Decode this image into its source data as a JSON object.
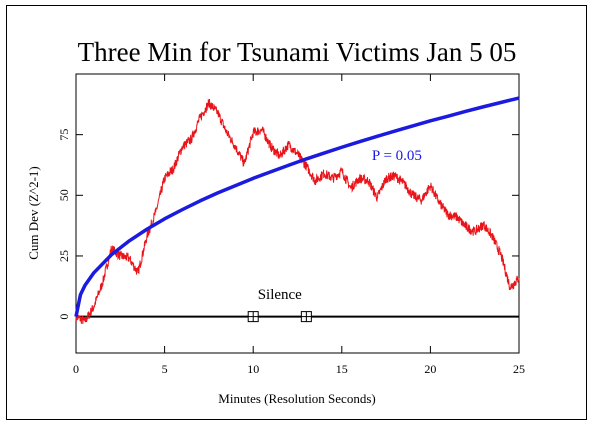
{
  "chart_data": {
    "type": "line",
    "title": "Three Min for Tsunami Victims Jan 5 05",
    "xlabel": "Minutes (Resolution Seconds)",
    "ylabel": "Cum Dev (Z^2-1)",
    "xlim": [
      0,
      25
    ],
    "ylim": [
      -15,
      100
    ],
    "x_ticks": [
      0,
      5,
      10,
      15,
      20,
      25
    ],
    "y_ticks": [
      0,
      25,
      50,
      75
    ],
    "grid": false,
    "series": [
      {
        "color": "#e8141a",
        "x": [
          0,
          0.5,
          1,
          1.5,
          2,
          2.5,
          3,
          3.5,
          4,
          4.5,
          5,
          5.5,
          6,
          6.5,
          7,
          7.5,
          8,
          8.5,
          9,
          9.5,
          10,
          10.5,
          11,
          11.5,
          12,
          12.5,
          13,
          13.5,
          14,
          14.5,
          15,
          15.5,
          16,
          16.5,
          17,
          17.5,
          18,
          18.5,
          19,
          19.5,
          20,
          20.5,
          21,
          21.5,
          22,
          22.5,
          23,
          23.5,
          24,
          24.5,
          25
        ],
        "values": [
          0,
          -2,
          4,
          14,
          28,
          25,
          24,
          18,
          33,
          43,
          57,
          61,
          70,
          73,
          82,
          88,
          84,
          76,
          70,
          63,
          76,
          77,
          70,
          66,
          71,
          67,
          62,
          56,
          59,
          57,
          60,
          53,
          57,
          56,
          49,
          57,
          58,
          55,
          50,
          48,
          54,
          47,
          42,
          41,
          37,
          35,
          38,
          33,
          25,
          12,
          16
        ]
      },
      {
        "name": "P = 0.05",
        "color": "#1a1ae0",
        "formula": "1.645*sqrt(2*seconds)",
        "x": [
          0,
          0.25,
          0.5,
          1,
          2,
          3,
          4,
          5,
          6,
          7,
          8,
          9,
          10,
          11,
          12,
          13,
          14,
          15,
          16,
          17,
          18,
          19,
          20,
          21,
          22,
          23,
          24,
          25
        ],
        "values": [
          0,
          9,
          12.8,
          18.0,
          25.5,
          31.2,
          36.0,
          40.3,
          44.1,
          47.7,
          51.0,
          54.0,
          57.0,
          59.7,
          62.4,
          65.0,
          67.4,
          69.8,
          72.1,
          74.3,
          76.5,
          78.6,
          80.7,
          82.6,
          84.6,
          86.5,
          88.3,
          90.1
        ]
      }
    ],
    "annotations": {
      "p_label": "P = 0.05",
      "silence_label": "Silence",
      "silence_markers_x": [
        10,
        13
      ]
    }
  }
}
